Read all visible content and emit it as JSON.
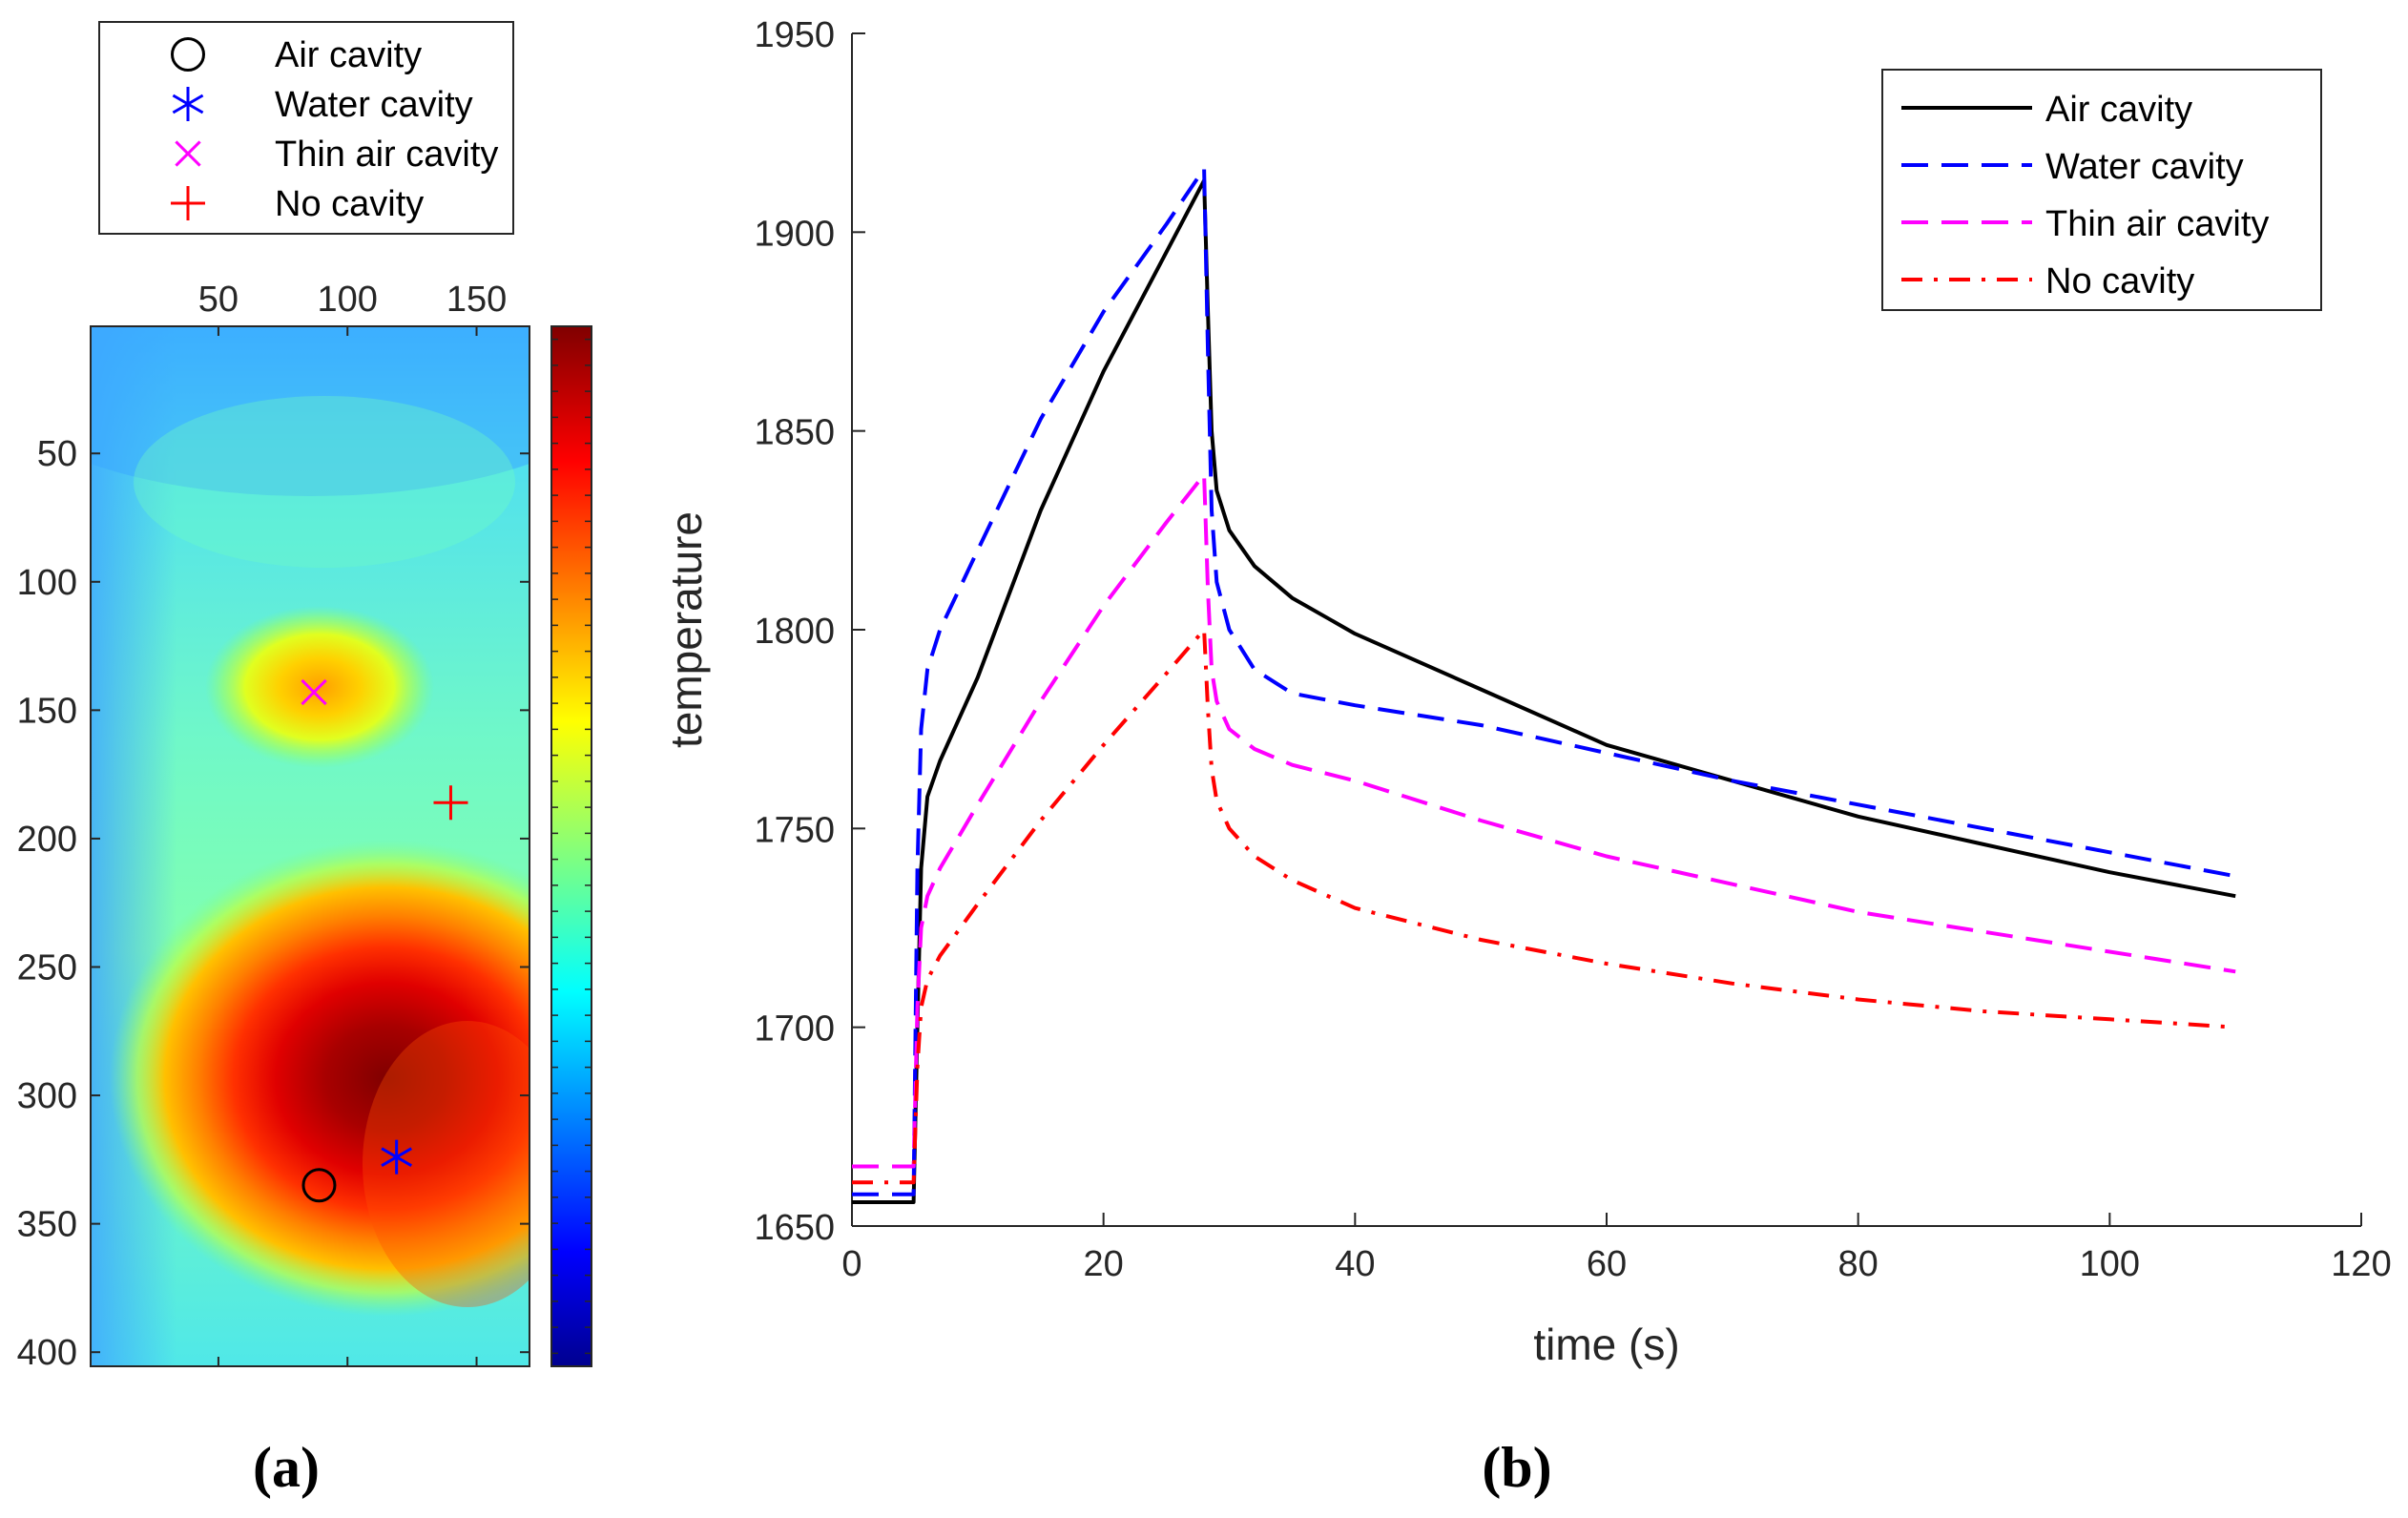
{
  "panel_a": {
    "caption": "(a)",
    "legend": [
      {
        "label": "Air cavity",
        "marker": "circle",
        "color": "#000000"
      },
      {
        "label": "Water cavity",
        "marker": "asterisk",
        "color": "#0000ff"
      },
      {
        "label": "Thin air cavity",
        "marker": "x",
        "color": "#ff00ff"
      },
      {
        "label": "No cavity",
        "marker": "plus",
        "color": "#ff0000"
      }
    ],
    "x_ticks": [
      "50",
      "100",
      "150"
    ],
    "y_ticks": [
      "50",
      "100",
      "150",
      "200",
      "250",
      "300",
      "350",
      "400"
    ],
    "colormap": "jet"
  },
  "panel_b": {
    "caption": "(b)"
  },
  "chart_data": [
    {
      "type": "heatmap",
      "title": "",
      "x_range": [
        1,
        170
      ],
      "y_range": [
        1,
        405
      ],
      "x_ticks": [
        50,
        100,
        150
      ],
      "y_ticks": [
        50,
        100,
        150,
        200,
        250,
        300,
        350,
        400
      ],
      "y_reversed": true,
      "x_axis_position": "top",
      "colormap": "jet",
      "hot_spots": [
        {
          "x": 105,
          "y": 325,
          "intensity": "max"
        },
        {
          "x": 88,
          "y": 140,
          "intensity": "medium"
        }
      ],
      "markers": [
        {
          "name": "Air cavity",
          "x": 89,
          "y": 335,
          "marker": "circle",
          "color": "#000000"
        },
        {
          "name": "Water cavity",
          "x": 119,
          "y": 324,
          "marker": "asterisk",
          "color": "#0000ff"
        },
        {
          "name": "Thin air cavity",
          "x": 87,
          "y": 143,
          "marker": "x",
          "color": "#ff00ff"
        },
        {
          "name": "No cavity",
          "x": 140,
          "y": 186,
          "marker": "plus",
          "color": "#ff0000"
        }
      ]
    },
    {
      "type": "line",
      "xlabel": "time (s)",
      "ylabel": "temperature",
      "xlim": [
        0,
        120
      ],
      "ylim": [
        1650,
        1950
      ],
      "x_ticks": [
        0,
        20,
        40,
        60,
        80,
        100,
        120
      ],
      "y_ticks": [
        1650,
        1700,
        1750,
        1800,
        1850,
        1900,
        1950
      ],
      "legend_position": "top-right",
      "series": [
        {
          "name": "Air cavity",
          "color": "#000000",
          "style": "solid",
          "x": [
            0,
            4.9,
            5.2,
            5.5,
            6,
            7,
            10,
            15,
            20,
            25,
            28,
            28.3,
            28.6,
            29,
            30,
            32,
            35,
            40,
            50,
            60,
            70,
            80,
            90,
            100,
            110
          ],
          "y": [
            1656,
            1656,
            1700,
            1740,
            1758,
            1767,
            1788,
            1830,
            1865,
            1895,
            1913,
            1880,
            1850,
            1835,
            1825,
            1816,
            1808,
            1799,
            1785,
            1771,
            1762,
            1753,
            1746,
            1739,
            1733
          ]
        },
        {
          "name": "Water cavity",
          "color": "#0000ff",
          "style": "dashed",
          "x": [
            0,
            4.9,
            5.2,
            5.5,
            6,
            7,
            10,
            15,
            20,
            25,
            28,
            28.3,
            28.6,
            29,
            30,
            32,
            35,
            40,
            50,
            60,
            70,
            80,
            90,
            100,
            110
          ],
          "y": [
            1658,
            1658,
            1740,
            1775,
            1790,
            1800,
            1820,
            1853,
            1880,
            1902,
            1916,
            1870,
            1830,
            1812,
            1800,
            1790,
            1784,
            1781,
            1776,
            1769,
            1762,
            1756,
            1750,
            1744,
            1738
          ]
        },
        {
          "name": "Thin air cavity",
          "color": "#ff00ff",
          "style": "dashed",
          "x": [
            0,
            4.9,
            5.2,
            5.5,
            6,
            7,
            10,
            15,
            20,
            25,
            28,
            28.3,
            28.6,
            29,
            30,
            32,
            35,
            40,
            50,
            60,
            70,
            80,
            90,
            100,
            110
          ],
          "y": [
            1665,
            1665,
            1705,
            1725,
            1733,
            1740,
            1756,
            1782,
            1806,
            1827,
            1839,
            1810,
            1790,
            1782,
            1775,
            1770,
            1766,
            1762,
            1752,
            1743,
            1736,
            1729,
            1724,
            1719,
            1714
          ]
        },
        {
          "name": "No cavity",
          "color": "#ff0000",
          "style": "dashdot",
          "x": [
            0,
            4.9,
            5.2,
            5.5,
            6,
            7,
            10,
            15,
            20,
            25,
            28,
            28.3,
            28.6,
            29,
            30,
            32,
            35,
            40,
            50,
            60,
            70,
            80,
            90,
            100,
            110
          ],
          "y": [
            1661,
            1661,
            1690,
            1705,
            1712,
            1718,
            1731,
            1752,
            1771,
            1789,
            1800,
            1780,
            1765,
            1757,
            1750,
            1743,
            1737,
            1730,
            1722,
            1716,
            1711,
            1707,
            1704,
            1702,
            1700
          ]
        }
      ]
    }
  ]
}
